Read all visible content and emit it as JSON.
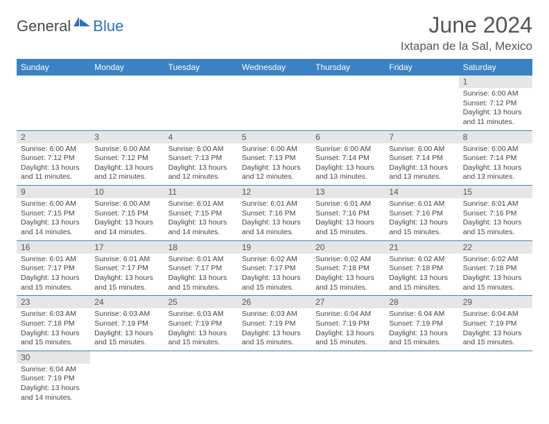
{
  "logo": {
    "text1": "General",
    "text2": "Blue",
    "shape_color": "#2a72b5"
  },
  "title": "June 2024",
  "location": "Ixtapan de la Sal, Mexico",
  "colors": {
    "header_bg": "#3b82c4",
    "header_text": "#ffffff",
    "daynum_bg": "#e6e6e6",
    "border": "#3b82c4"
  },
  "weekdays": [
    "Sunday",
    "Monday",
    "Tuesday",
    "Wednesday",
    "Thursday",
    "Friday",
    "Saturday"
  ],
  "first_weekday_index": 6,
  "days": [
    {
      "n": 1,
      "sr": "6:00 AM",
      "ss": "7:12 PM",
      "dl": "13 hours and 11 minutes."
    },
    {
      "n": 2,
      "sr": "6:00 AM",
      "ss": "7:12 PM",
      "dl": "13 hours and 11 minutes."
    },
    {
      "n": 3,
      "sr": "6:00 AM",
      "ss": "7:12 PM",
      "dl": "13 hours and 12 minutes."
    },
    {
      "n": 4,
      "sr": "6:00 AM",
      "ss": "7:13 PM",
      "dl": "13 hours and 12 minutes."
    },
    {
      "n": 5,
      "sr": "6:00 AM",
      "ss": "7:13 PM",
      "dl": "13 hours and 12 minutes."
    },
    {
      "n": 6,
      "sr": "6:00 AM",
      "ss": "7:14 PM",
      "dl": "13 hours and 13 minutes."
    },
    {
      "n": 7,
      "sr": "6:00 AM",
      "ss": "7:14 PM",
      "dl": "13 hours and 13 minutes."
    },
    {
      "n": 8,
      "sr": "6:00 AM",
      "ss": "7:14 PM",
      "dl": "13 hours and 13 minutes."
    },
    {
      "n": 9,
      "sr": "6:00 AM",
      "ss": "7:15 PM",
      "dl": "13 hours and 14 minutes."
    },
    {
      "n": 10,
      "sr": "6:00 AM",
      "ss": "7:15 PM",
      "dl": "13 hours and 14 minutes."
    },
    {
      "n": 11,
      "sr": "6:01 AM",
      "ss": "7:15 PM",
      "dl": "13 hours and 14 minutes."
    },
    {
      "n": 12,
      "sr": "6:01 AM",
      "ss": "7:16 PM",
      "dl": "13 hours and 14 minutes."
    },
    {
      "n": 13,
      "sr": "6:01 AM",
      "ss": "7:16 PM",
      "dl": "13 hours and 15 minutes."
    },
    {
      "n": 14,
      "sr": "6:01 AM",
      "ss": "7:16 PM",
      "dl": "13 hours and 15 minutes."
    },
    {
      "n": 15,
      "sr": "6:01 AM",
      "ss": "7:16 PM",
      "dl": "13 hours and 15 minutes."
    },
    {
      "n": 16,
      "sr": "6:01 AM",
      "ss": "7:17 PM",
      "dl": "13 hours and 15 minutes."
    },
    {
      "n": 17,
      "sr": "6:01 AM",
      "ss": "7:17 PM",
      "dl": "13 hours and 15 minutes."
    },
    {
      "n": 18,
      "sr": "6:01 AM",
      "ss": "7:17 PM",
      "dl": "13 hours and 15 minutes."
    },
    {
      "n": 19,
      "sr": "6:02 AM",
      "ss": "7:17 PM",
      "dl": "13 hours and 15 minutes."
    },
    {
      "n": 20,
      "sr": "6:02 AM",
      "ss": "7:18 PM",
      "dl": "13 hours and 15 minutes."
    },
    {
      "n": 21,
      "sr": "6:02 AM",
      "ss": "7:18 PM",
      "dl": "13 hours and 15 minutes."
    },
    {
      "n": 22,
      "sr": "6:02 AM",
      "ss": "7:18 PM",
      "dl": "13 hours and 15 minutes."
    },
    {
      "n": 23,
      "sr": "6:03 AM",
      "ss": "7:18 PM",
      "dl": "13 hours and 15 minutes."
    },
    {
      "n": 24,
      "sr": "6:03 AM",
      "ss": "7:19 PM",
      "dl": "13 hours and 15 minutes."
    },
    {
      "n": 25,
      "sr": "6:03 AM",
      "ss": "7:19 PM",
      "dl": "13 hours and 15 minutes."
    },
    {
      "n": 26,
      "sr": "6:03 AM",
      "ss": "7:19 PM",
      "dl": "13 hours and 15 minutes."
    },
    {
      "n": 27,
      "sr": "6:04 AM",
      "ss": "7:19 PM",
      "dl": "13 hours and 15 minutes."
    },
    {
      "n": 28,
      "sr": "6:04 AM",
      "ss": "7:19 PM",
      "dl": "13 hours and 15 minutes."
    },
    {
      "n": 29,
      "sr": "6:04 AM",
      "ss": "7:19 PM",
      "dl": "13 hours and 15 minutes."
    },
    {
      "n": 30,
      "sr": "6:04 AM",
      "ss": "7:19 PM",
      "dl": "13 hours and 14 minutes."
    }
  ],
  "labels": {
    "sunrise": "Sunrise:",
    "sunset": "Sunset:",
    "daylight": "Daylight:"
  }
}
